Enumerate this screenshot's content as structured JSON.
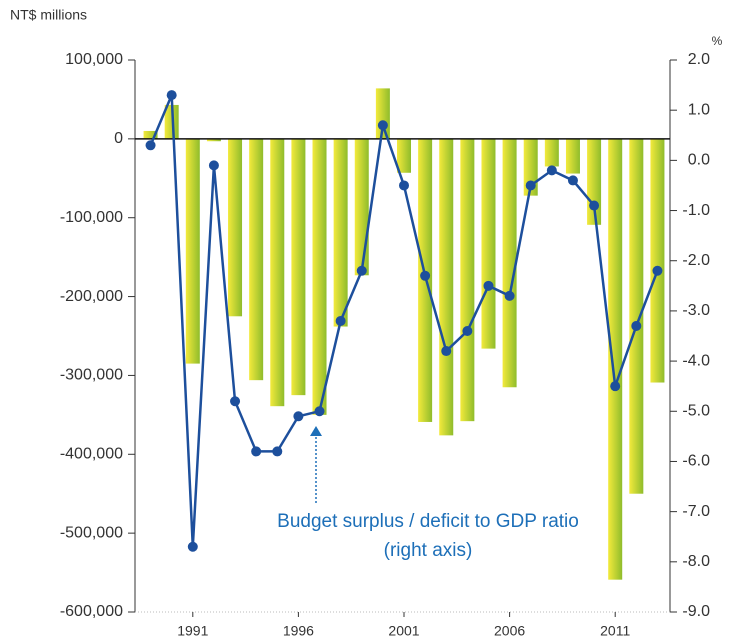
{
  "chart_data": {
    "type": "bar_line",
    "y_label": "NT$ millions",
    "y2_label": "%",
    "annotation": [
      "Budget surplus / deficit to GDP ratio",
      "(right axis)"
    ],
    "categories": [
      null,
      null,
      "1991",
      null,
      null,
      null,
      null,
      "1996",
      null,
      null,
      null,
      null,
      "2001",
      null,
      null,
      null,
      null,
      "2006",
      null,
      null,
      null,
      null,
      "2011",
      null,
      null
    ],
    "series": [
      {
        "type": "bar",
        "color": "#8fbc2b",
        "values": [
          10000,
          43000,
          -285000,
          -3000,
          -225000,
          -306000,
          -339000,
          -325000,
          -350000,
          -238000,
          -173000,
          64000,
          -43000,
          -359000,
          -376000,
          -358000,
          -266000,
          -315000,
          -72000,
          -35000,
          -44000,
          -109000,
          -559000,
          -450000,
          -309000
        ]
      },
      {
        "type": "line",
        "axis": "y2",
        "color": "#1d4f9c",
        "values": [
          0.3,
          1.3,
          -7.7,
          -0.1,
          -4.8,
          -5.8,
          -5.8,
          -5.1,
          -5.0,
          -3.2,
          -2.2,
          0.7,
          -0.5,
          -2.3,
          -3.8,
          -3.4,
          -2.5,
          -2.7,
          -0.5,
          -0.2,
          -0.4,
          -0.9,
          -4.5,
          -3.3,
          -2.2
        ]
      }
    ],
    "ylim": [
      -600000,
      100000
    ],
    "yticks": [
      {
        "value": 100000,
        "label": "100,000"
      },
      0,
      {
        "value": -100000,
        "label": "-100,000"
      },
      {
        "value": -200000,
        "label": "-200,000"
      },
      {
        "value": -300000,
        "label": "-300,000"
      },
      {
        "value": -400000,
        "label": "-400,000"
      },
      {
        "value": -500000,
        "label": "-500,000"
      },
      {
        "value": -600000,
        "label": "-600,000"
      }
    ],
    "y2lim": [
      -9,
      2
    ],
    "y2ticks": [
      {
        "value": 2,
        "label": "2.0"
      },
      {
        "value": 1,
        "label": "1.0"
      },
      {
        "value": 0,
        "label": "0.0"
      },
      {
        "value": -1,
        "label": "-1.0"
      },
      {
        "value": -2,
        "label": "-2.0"
      },
      {
        "value": -3,
        "label": "-3.0"
      },
      {
        "value": -4,
        "label": "-4.0"
      },
      {
        "value": -5,
        "label": "-5.0"
      },
      {
        "value": -6,
        "label": "-6.0"
      },
      {
        "value": -7,
        "label": "-7.0"
      },
      {
        "value": -8,
        "label": "-8.0"
      },
      {
        "value": -9,
        "label": "-9.0"
      }
    ],
    "grid": false
  }
}
